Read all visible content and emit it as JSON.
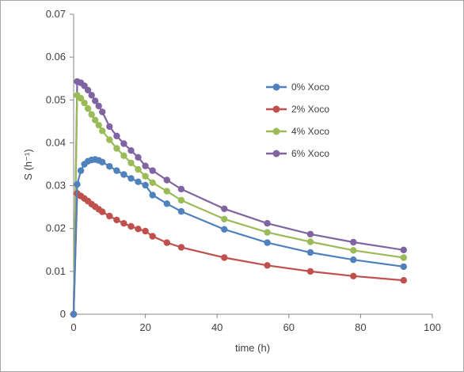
{
  "chart_data": {
    "type": "line",
    "title": "",
    "xlabel": "time (h)",
    "ylabel": "S (h⁻¹)",
    "xlim": [
      0,
      100
    ],
    "ylim": [
      0,
      0.07
    ],
    "x_ticks": [
      0,
      20,
      40,
      60,
      80,
      100
    ],
    "y_ticks": [
      0,
      0.01,
      0.02,
      0.03,
      0.04,
      0.05,
      0.06,
      0.07
    ],
    "x_tick_labels": [
      "0",
      "20",
      "40",
      "60",
      "80",
      "100"
    ],
    "y_tick_labels": [
      "0",
      "0.01",
      "0.02",
      "0.03",
      "0.04",
      "0.05",
      "0.06",
      "0.07"
    ],
    "grid": false,
    "legend_position": "right",
    "series": [
      {
        "name": "0% Xoco",
        "color": "#4f81bd",
        "x": [
          0,
          1,
          2,
          3,
          4,
          5,
          6,
          7,
          8,
          10,
          12,
          14,
          16,
          18,
          20,
          22,
          26,
          30,
          42,
          54,
          66,
          78,
          92
        ],
        "y": [
          0,
          0.0303,
          0.0335,
          0.035,
          0.0357,
          0.036,
          0.0361,
          0.0359,
          0.0355,
          0.0345,
          0.0335,
          0.0326,
          0.0317,
          0.0309,
          0.0301,
          0.0278,
          0.0258,
          0.024,
          0.0198,
          0.0167,
          0.0144,
          0.0127,
          0.0111
        ]
      },
      {
        "name": "2% Xoco",
        "color": "#c0504d",
        "x": [
          0,
          1,
          2,
          3,
          4,
          5,
          6,
          7,
          8,
          10,
          12,
          14,
          16,
          18,
          20,
          22,
          26,
          30,
          42,
          54,
          66,
          78,
          92
        ],
        "y": [
          0,
          0.0282,
          0.0276,
          0.027,
          0.0264,
          0.0257,
          0.0251,
          0.0245,
          0.0239,
          0.0229,
          0.022,
          0.0212,
          0.0205,
          0.0199,
          0.0194,
          0.0182,
          0.0167,
          0.0156,
          0.0132,
          0.0114,
          0.01,
          0.0089,
          0.0079
        ]
      },
      {
        "name": "4% Xoco",
        "color": "#9bbb59",
        "x": [
          0,
          1,
          2,
          3,
          4,
          5,
          6,
          7,
          8,
          10,
          12,
          14,
          16,
          18,
          20,
          22,
          26,
          30,
          42,
          54,
          66,
          78,
          92
        ],
        "y": [
          0,
          0.0511,
          0.0504,
          0.0493,
          0.048,
          0.0466,
          0.0453,
          0.0441,
          0.0428,
          0.0407,
          0.0387,
          0.037,
          0.0353,
          0.0338,
          0.0322,
          0.0307,
          0.0287,
          0.0266,
          0.0222,
          0.0191,
          0.0169,
          0.0149,
          0.0132
        ]
      },
      {
        "name": "6% Xoco",
        "color": "#8064a2",
        "x": [
          0,
          1,
          2,
          3,
          4,
          5,
          6,
          7,
          8,
          10,
          12,
          14,
          16,
          18,
          20,
          22,
          26,
          30,
          42,
          54,
          66,
          78,
          92
        ],
        "y": [
          0,
          0.0543,
          0.054,
          0.0533,
          0.0523,
          0.0511,
          0.0498,
          0.0486,
          0.0472,
          0.0438,
          0.0416,
          0.0398,
          0.0382,
          0.0366,
          0.0346,
          0.0335,
          0.0313,
          0.0292,
          0.0246,
          0.0212,
          0.0187,
          0.0168,
          0.015
        ]
      }
    ]
  }
}
